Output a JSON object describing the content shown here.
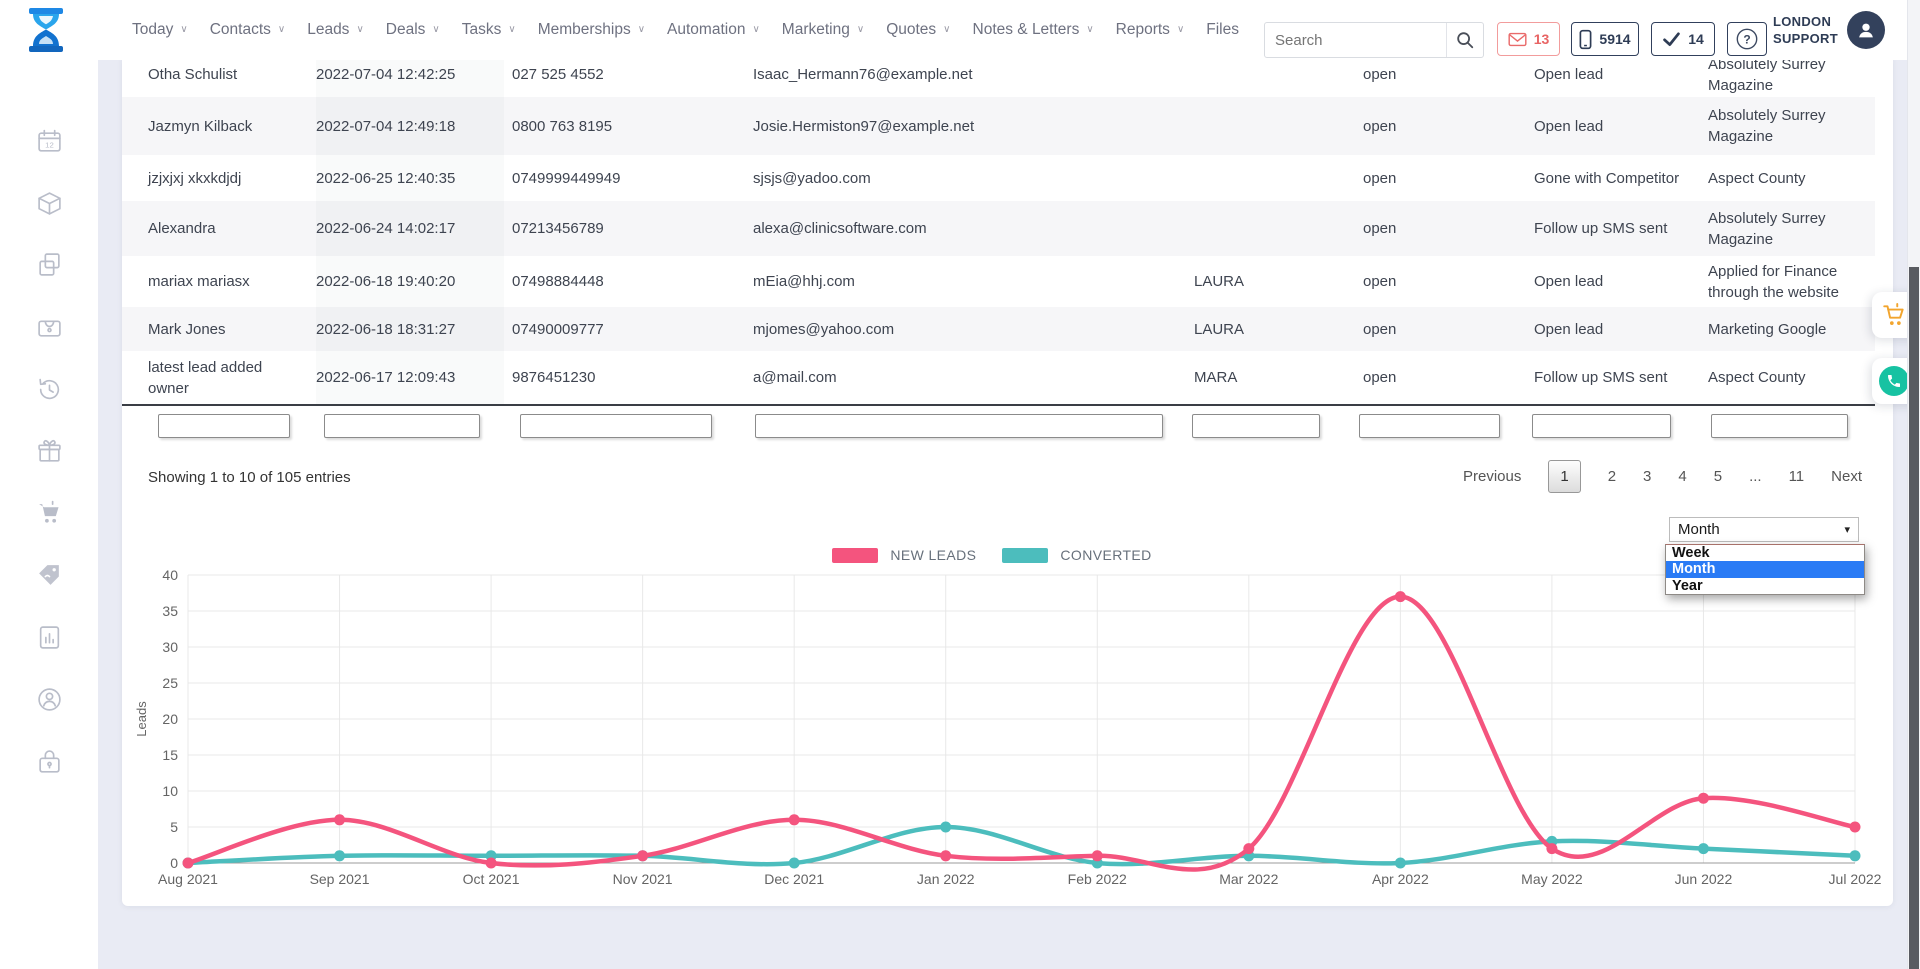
{
  "topbar": {
    "nav": [
      {
        "label": "Today",
        "dropdown": true
      },
      {
        "label": "Contacts",
        "dropdown": true
      },
      {
        "label": "Leads",
        "dropdown": true
      },
      {
        "label": "Deals",
        "dropdown": true
      },
      {
        "label": "Tasks",
        "dropdown": true
      },
      {
        "label": "Memberships",
        "dropdown": true
      },
      {
        "label": "Automation",
        "dropdown": true
      },
      {
        "label": "Marketing",
        "dropdown": true
      },
      {
        "label": "Quotes",
        "dropdown": true
      },
      {
        "label": "Notes & Letters",
        "dropdown": true
      },
      {
        "label": "Reports",
        "dropdown": true
      },
      {
        "label": "Files",
        "dropdown": false
      }
    ],
    "search": {
      "placeholder": "Search",
      "value": ""
    },
    "badges": {
      "messages": "13",
      "calls": "5914",
      "tasks": "14"
    },
    "user": {
      "line1": "LONDON",
      "line2": "SUPPORT"
    }
  },
  "sidebar": {
    "items": [
      "calendar",
      "products",
      "duplicates",
      "wallet",
      "history",
      "gifts",
      "cart",
      "price-tag",
      "reports",
      "support",
      "security"
    ]
  },
  "table": {
    "columns": [
      "name",
      "date",
      "phone",
      "email",
      "owner",
      "status",
      "lead_status",
      "source"
    ],
    "rows": [
      {
        "name": "Otha Schulist",
        "date": "2022-07-04 12:42:25",
        "phone": "027 525 4552",
        "email": "Isaac_Hermann76@example.net",
        "owner": "",
        "status": "open",
        "lead_status": "Open lead",
        "source": "Absolutely Surrey Magazine"
      },
      {
        "name": "Jazmyn Kilback",
        "date": "2022-07-04 12:49:18",
        "phone": "0800 763 8195",
        "email": "Josie.Hermiston97@example.net",
        "owner": "",
        "status": "open",
        "lead_status": "Open lead",
        "source": "Absolutely Surrey Magazine"
      },
      {
        "name": "jzjxjxj xkxkdjdj",
        "date": "2022-06-25 12:40:35",
        "phone": "0749999449949",
        "email": "sjsjs@yadoo.com",
        "owner": "",
        "status": "open",
        "lead_status": "Gone with Competitor",
        "source": "Aspect County"
      },
      {
        "name": "Alexandra",
        "date": "2022-06-24 14:02:17",
        "phone": "07213456789",
        "email": "alexa@clinicsoftware.com",
        "owner": "",
        "status": "open",
        "lead_status": "Follow up SMS sent",
        "source": "Absolutely Surrey Magazine"
      },
      {
        "name": "mariax mariasx",
        "date": "2022-06-18 19:40:20",
        "phone": "07498884448",
        "email": "mEia@hhj.com",
        "owner": "LAURA",
        "status": "open",
        "lead_status": "Open lead",
        "source": "Applied for Finance through the website"
      },
      {
        "name": "Mark Jones",
        "date": "2022-06-18 18:31:27",
        "phone": "07490009777",
        "email": "mjomes@yahoo.com",
        "owner": "LAURA",
        "status": "open",
        "lead_status": "Open lead",
        "source": "Marketing Google"
      },
      {
        "name": "latest lead added owner",
        "date": "2022-06-17 12:09:43",
        "phone": "9876451230",
        "email": "a@mail.com",
        "owner": "MARA",
        "status": "open",
        "lead_status": "Follow up SMS sent",
        "source": "Aspect County"
      }
    ],
    "filter_values": [
      "",
      "",
      "",
      "",
      "",
      "",
      "",
      ""
    ]
  },
  "pagination": {
    "info": "Showing 1 to 10 of 105 entries",
    "previous_label": "Previous",
    "pages": [
      "1",
      "2",
      "3",
      "4",
      "5",
      "...",
      "11"
    ],
    "current": "1",
    "next_label": "Next"
  },
  "period_select": {
    "selected": "Month",
    "options": [
      "Week",
      "Month",
      "Year"
    ],
    "highlighted": "Month"
  },
  "chart_data": {
    "type": "line",
    "title": "",
    "categories": [
      "Aug 2021",
      "Sep 2021",
      "Oct 2021",
      "Nov 2021",
      "Dec 2021",
      "Jan 2022",
      "Feb 2022",
      "Mar 2022",
      "Apr 2022",
      "May 2022",
      "Jun 2022",
      "Jul 2022"
    ],
    "series": [
      {
        "name": "NEW LEADS",
        "color": "#f4547e",
        "values": [
          0,
          6,
          0,
          1,
          6,
          1,
          1,
          2,
          37,
          2,
          9,
          5
        ]
      },
      {
        "name": "CONVERTED",
        "color": "#4cbdbd",
        "values": [
          0,
          1,
          1,
          1,
          0,
          5,
          0,
          1,
          0,
          3,
          2,
          1
        ]
      }
    ],
    "xlabel": "",
    "ylabel": "Leads",
    "ylim": [
      0,
      40
    ],
    "ytick_step": 5,
    "grid": true,
    "legend_position": "top"
  }
}
